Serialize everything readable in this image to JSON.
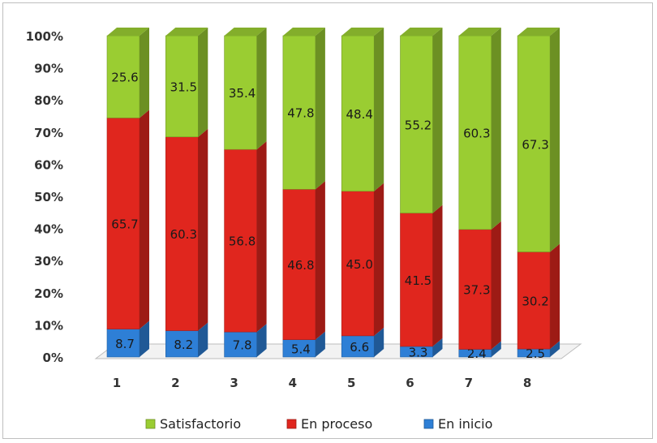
{
  "chart_data": {
    "type": "bar",
    "stacked": true,
    "percent_stacked": true,
    "three_d": true,
    "categories": [
      "1",
      "2",
      "3",
      "4",
      "5",
      "6",
      "7",
      "8"
    ],
    "series": [
      {
        "name": "En inicio",
        "values": [
          8.7,
          8.2,
          7.8,
          5.4,
          6.6,
          3.3,
          2.4,
          2.5
        ],
        "color": "#2e7fd6"
      },
      {
        "name": "En proceso",
        "values": [
          65.7,
          60.3,
          56.8,
          46.8,
          45.0,
          41.5,
          37.3,
          30.2
        ],
        "color": "#e0261e"
      },
      {
        "name": "Satisfactorio",
        "values": [
          25.6,
          31.5,
          35.4,
          47.8,
          48.4,
          55.2,
          60.3,
          67.3
        ],
        "color": "#9acd32"
      }
    ],
    "data_labels": [
      [
        "8.7",
        "8.2",
        "7.8",
        "5.4",
        "6.6",
        "3.3",
        "2.4",
        "2.5"
      ],
      [
        "65.7",
        "60.3",
        "56.8",
        "46.8",
        "45.0",
        "41.5",
        "37.3",
        "30.2"
      ],
      [
        "25.6",
        "31.5",
        "35.4",
        "47.8",
        "48.4",
        "55.2",
        "60.3",
        "67.3"
      ]
    ],
    "y_ticks": [
      "0%",
      "10%",
      "20%",
      "30%",
      "40%",
      "50%",
      "60%",
      "70%",
      "80%",
      "90%",
      "100%"
    ],
    "ylim": [
      0,
      100
    ],
    "legend": {
      "position": "bottom",
      "order": [
        "Satisfactorio",
        "En proceso",
        "En inicio"
      ]
    },
    "grid": false
  }
}
